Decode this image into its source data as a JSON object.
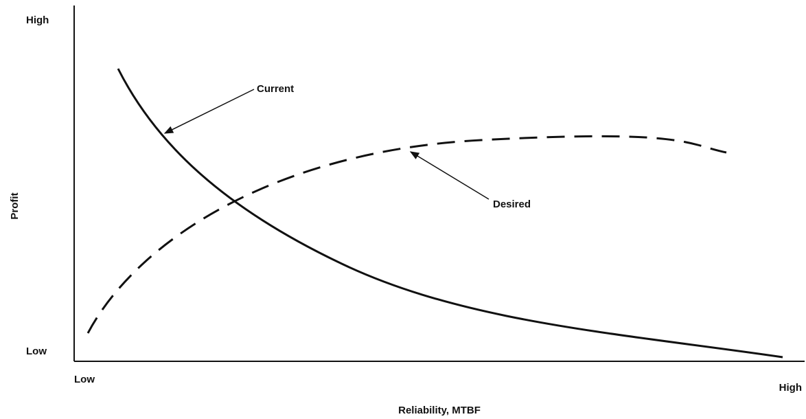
{
  "axes": {
    "y": {
      "title": "Profit",
      "high": "High",
      "low": "Low"
    },
    "x": {
      "title": "Reliability, MTBF",
      "low": "Low",
      "high": "High"
    }
  },
  "curves": [
    {
      "label": "Current"
    },
    {
      "label": "Desired"
    }
  ]
}
